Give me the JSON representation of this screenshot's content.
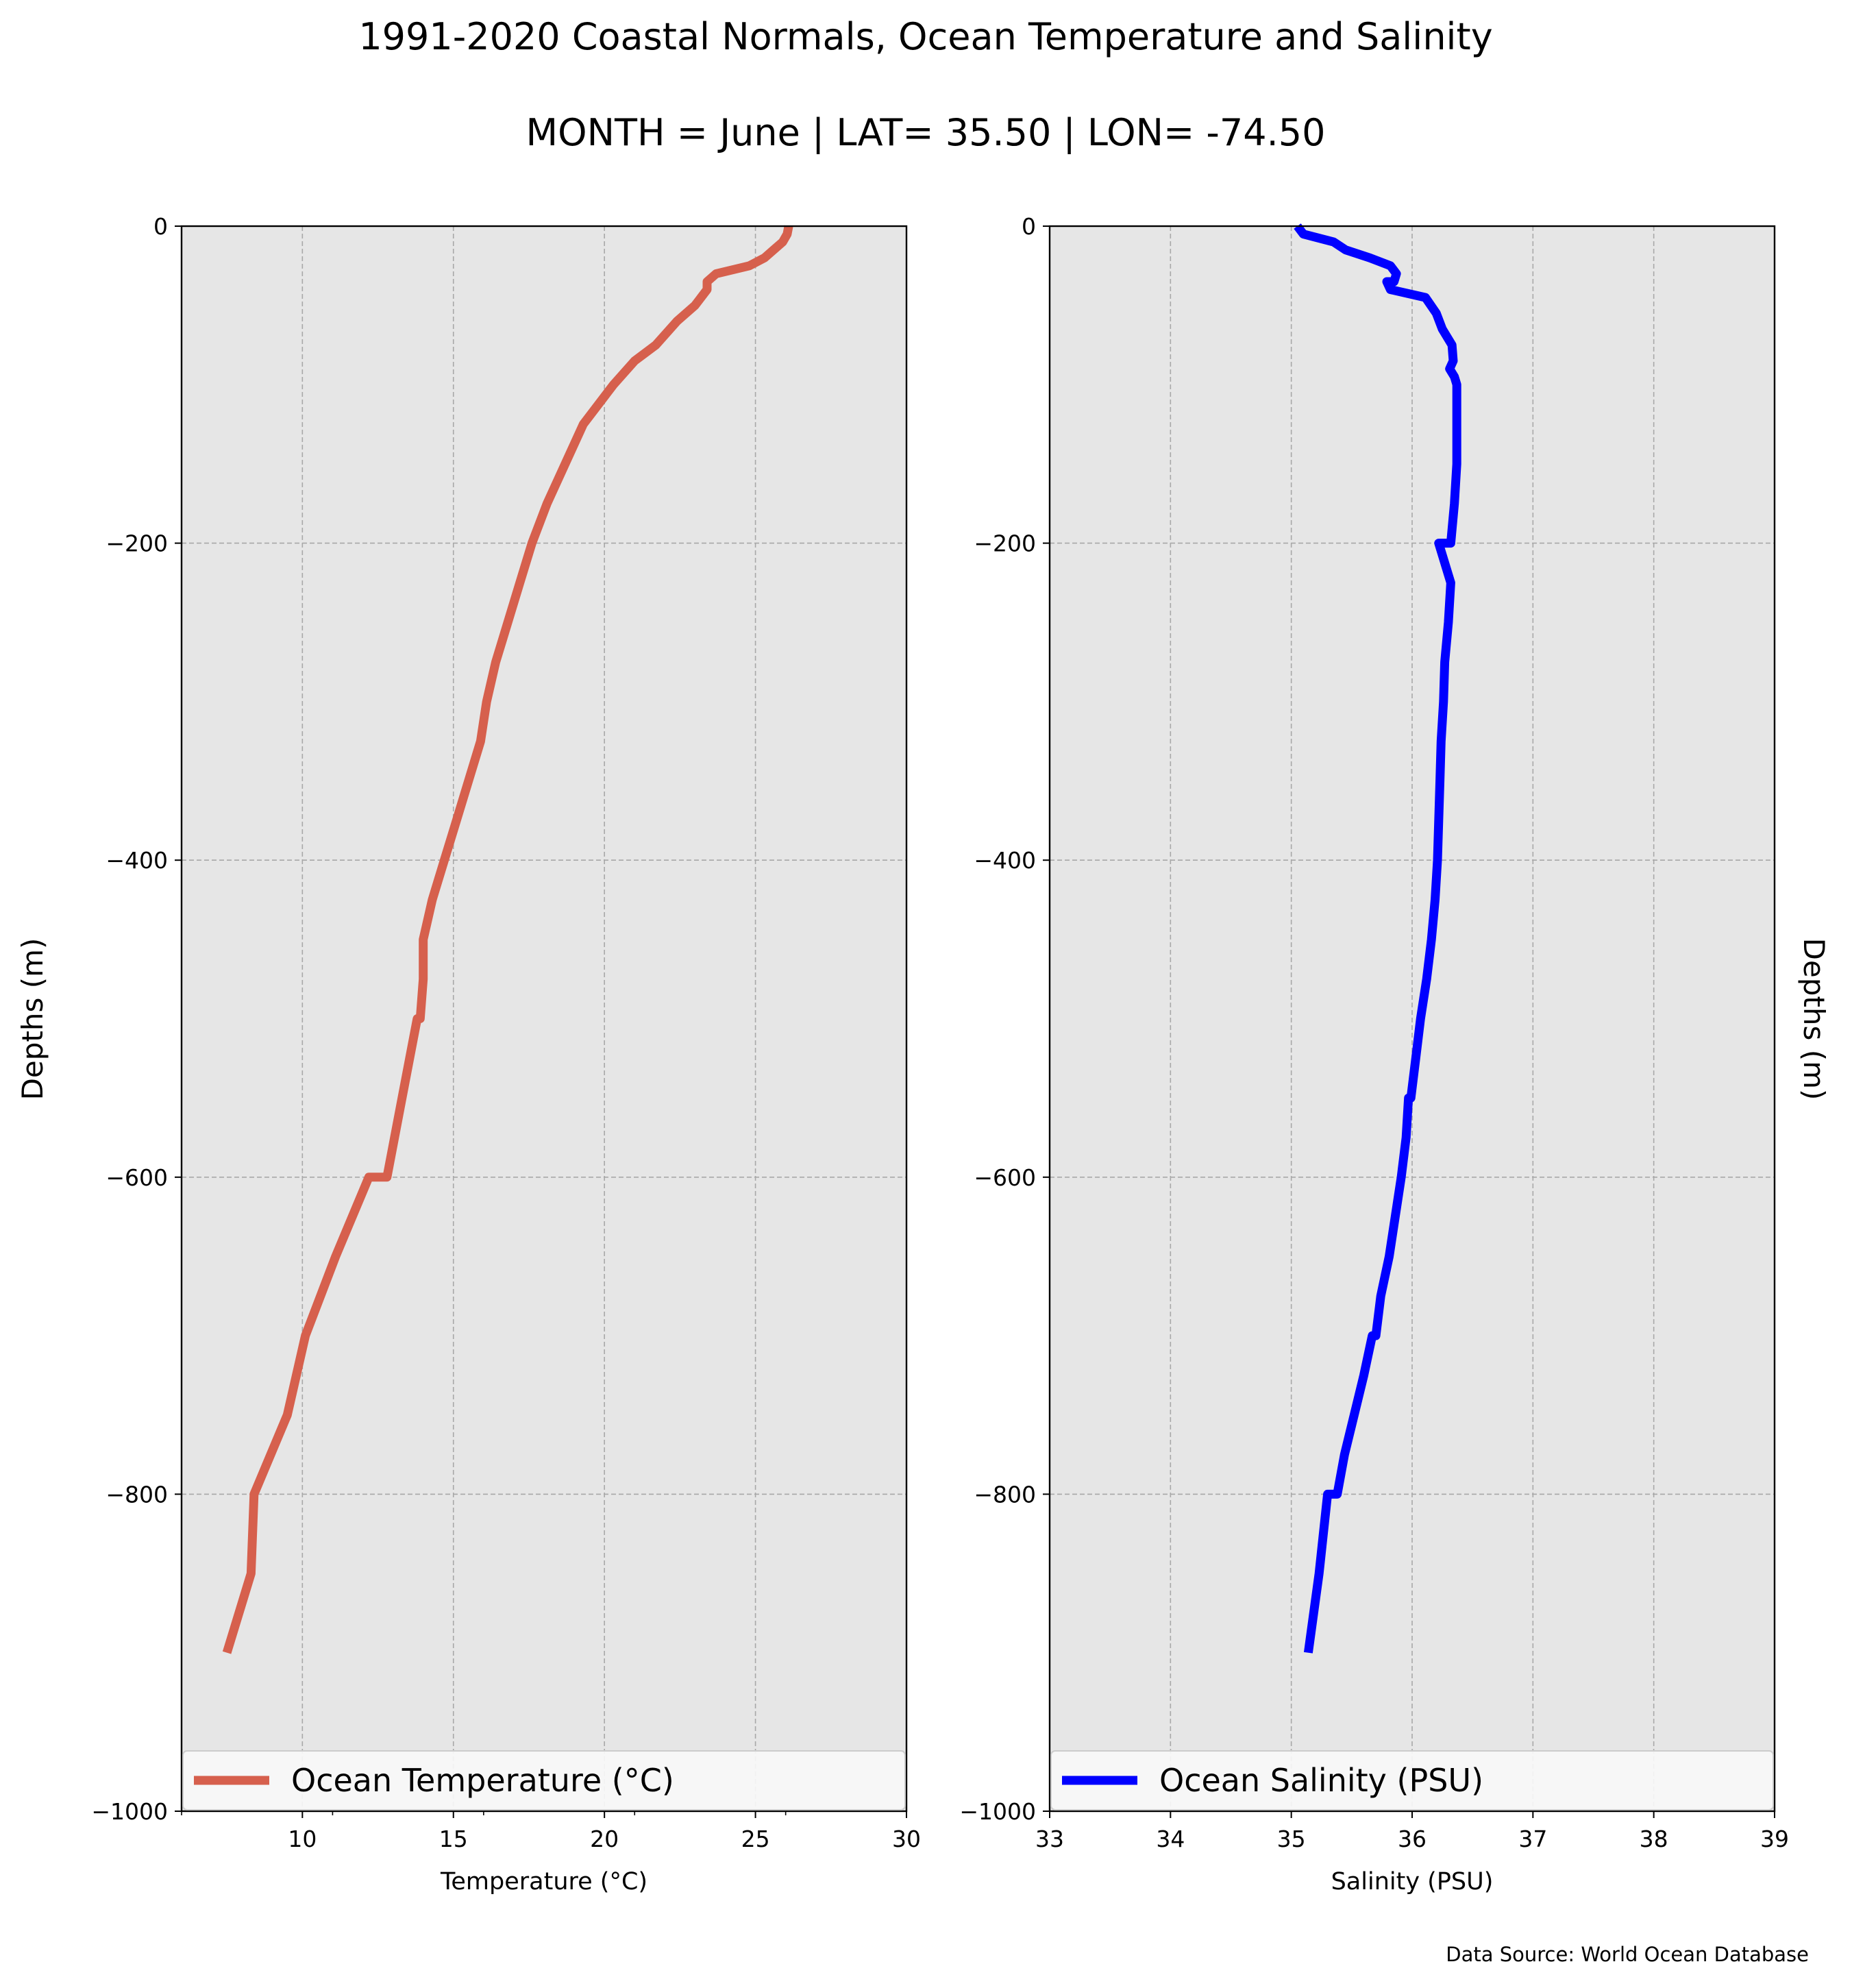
{
  "figure": {
    "title": "1991-2020 Coastal Normals, Ocean Temperature and Salinity",
    "subtitle": "MONTH = June | LAT= 35.50 | LON= -74.50",
    "source": "Data Source: World Ocean Database",
    "panel_background": "#e6e6e6",
    "grid_color": "#a8a8a8"
  },
  "chart_data": [
    {
      "type": "line",
      "xlabel": "Temperature (°C)",
      "ylabel": "Depths (m)",
      "xlim": [
        6,
        30
      ],
      "ylim": [
        -1000,
        0
      ],
      "xticks": [
        10,
        15,
        20,
        25,
        30
      ],
      "xtick_labels": [
        "10",
        "15",
        "20",
        "25",
        "30"
      ],
      "xminor_ticks": [
        6,
        11,
        16,
        21,
        26
      ],
      "yticks": [
        0,
        -200,
        -400,
        -600,
        -800,
        -1000
      ],
      "ytick_labels": [
        "0",
        "−200",
        "−400",
        "−600",
        "−800",
        "−1000"
      ],
      "grid": true,
      "legend": "bottom",
      "series": [
        {
          "name": "Ocean Temperature (°C)",
          "color": "#d6604d",
          "x": [
            26.1,
            26.05,
            25.9,
            25.6,
            25.3,
            24.8,
            23.7,
            23.4,
            23.4,
            23.0,
            22.4,
            21.7,
            21.0,
            20.3,
            19.3,
            18.1,
            17.6,
            17.2,
            16.8,
            16.4,
            16.1,
            15.9,
            15.5,
            15.1,
            14.7,
            14.3,
            14.0,
            14.0,
            13.9,
            13.8,
            13.3,
            12.8,
            12.2,
            11.1,
            10.1,
            9.5,
            8.4,
            8.3,
            7.5
          ],
          "y": [
            0,
            -5,
            -10,
            -15,
            -20,
            -25,
            -30,
            -35,
            -40,
            -50,
            -60,
            -75,
            -85,
            -100,
            -125,
            -175,
            -200,
            -225,
            -250,
            -275,
            -300,
            -325,
            -350,
            -375,
            -400,
            -425,
            -450,
            -475,
            -500,
            -500,
            -550,
            -600,
            -600,
            -650,
            -700,
            -750,
            -800,
            -850,
            -900
          ]
        }
      ]
    },
    {
      "type": "line",
      "xlabel": "Salinity (PSU)",
      "ylabel": "Depths (m)",
      "xlim": [
        33,
        39
      ],
      "ylim": [
        -1000,
        0
      ],
      "xticks": [
        33,
        34,
        35,
        36,
        37,
        38,
        39
      ],
      "xtick_labels": [
        "33",
        "34",
        "35",
        "36",
        "37",
        "38",
        "39"
      ],
      "yticks": [
        0,
        -200,
        -400,
        -600,
        -800,
        -1000
      ],
      "ytick_labels": [
        "0",
        "−200",
        "−400",
        "−600",
        "−800",
        "−1000"
      ],
      "grid": true,
      "legend": "bottom",
      "series": [
        {
          "name": "Ocean Salinity (PSU)",
          "color": "#0000ff",
          "x": [
            35.05,
            35.1,
            35.35,
            35.45,
            35.65,
            35.82,
            35.87,
            35.85,
            35.79,
            35.82,
            36.11,
            36.2,
            36.25,
            36.33,
            36.34,
            36.31,
            36.35,
            36.37,
            36.37,
            36.37,
            36.35,
            36.32,
            36.25,
            36.22,
            36.32,
            36.3,
            36.27,
            36.26,
            36.24,
            36.23,
            36.22,
            36.21,
            36.19,
            36.16,
            36.12,
            36.07,
            36.03,
            35.99,
            35.97,
            35.95,
            35.91,
            35.86,
            35.81,
            35.74,
            35.7,
            35.67,
            35.6,
            35.52,
            35.44,
            35.38,
            35.3,
            35.23,
            35.14
          ],
          "y": [
            0,
            -5,
            -10,
            -15,
            -20,
            -25,
            -30,
            -35,
            -35,
            -40,
            -45,
            -55,
            -65,
            -75,
            -85,
            -90,
            -95,
            -100,
            -125,
            -150,
            -175,
            -200,
            -200,
            -200,
            -225,
            -250,
            -275,
            -300,
            -325,
            -350,
            -375,
            -400,
            -425,
            -450,
            -475,
            -500,
            -525,
            -550,
            -550,
            -575,
            -600,
            -625,
            -650,
            -675,
            -700,
            -700,
            -725,
            -750,
            -775,
            -800,
            -800,
            -850,
            -900
          ]
        }
      ]
    }
  ]
}
